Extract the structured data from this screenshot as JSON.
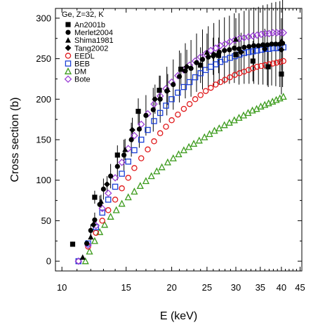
{
  "chart_data": {
    "type": "scatter",
    "title": "",
    "xlabel": "E (keV)",
    "ylabel": "Cross section   (b)",
    "x_scale": "log",
    "xlim": [
      9.6,
      45.5
    ],
    "ylim": [
      -12,
      312
    ],
    "x_ticks": [
      10,
      15,
      20,
      25,
      30,
      35,
      40,
      45
    ],
    "x_tick_labels": [
      "10",
      "15",
      "20",
      "25",
      "30",
      "35",
      "40",
      "45"
    ],
    "y_ticks": [
      0,
      50,
      100,
      150,
      200,
      250,
      300
    ],
    "y_tick_labels": [
      "0",
      "50",
      "100",
      "150",
      "200",
      "250",
      "300"
    ],
    "legend_title": "Ge, Z=32, K",
    "legend_position": "top-left",
    "grid": false,
    "series": [
      {
        "name": "An2001b",
        "marker": "square-filled",
        "color": "#000000",
        "points": [
          {
            "x": 10.7,
            "y": 21,
            "err": 3
          },
          {
            "x": 12.3,
            "y": 79,
            "err": 8
          },
          {
            "x": 14.2,
            "y": 131,
            "err": 12
          },
          {
            "x": 16.2,
            "y": 185,
            "err": 16
          },
          {
            "x": 18.5,
            "y": 211,
            "err": 18
          },
          {
            "x": 21.2,
            "y": 237,
            "err": 20
          },
          {
            "x": 24.0,
            "y": 242,
            "err": 22
          },
          {
            "x": 26.9,
            "y": 254,
            "err": 22
          },
          {
            "x": 30.0,
            "y": 255,
            "err": 24
          },
          {
            "x": 33.4,
            "y": 247,
            "err": 25
          },
          {
            "x": 36.8,
            "y": 240,
            "err": 25
          },
          {
            "x": 40.0,
            "y": 231,
            "err": 25
          }
        ]
      },
      {
        "name": "Merlet2004",
        "marker": "circle-filled",
        "color": "#000000",
        "points": [
          {
            "x": 11.7,
            "y": 22,
            "err": 4
          },
          {
            "x": 12.0,
            "y": 38,
            "err": 7
          },
          {
            "x": 12.3,
            "y": 51,
            "err": 9
          },
          {
            "x": 12.7,
            "y": 70,
            "err": 11
          },
          {
            "x": 13.0,
            "y": 89,
            "err": 13
          },
          {
            "x": 13.6,
            "y": 105,
            "err": 15
          },
          {
            "x": 14.2,
            "y": 117,
            "err": 17
          },
          {
            "x": 14.8,
            "y": 131,
            "err": 19
          },
          {
            "x": 15.5,
            "y": 150,
            "err": 21
          },
          {
            "x": 16.3,
            "y": 163,
            "err": 23
          },
          {
            "x": 17.0,
            "y": 180,
            "err": 25
          },
          {
            "x": 17.8,
            "y": 187,
            "err": 27
          },
          {
            "x": 18.6,
            "y": 200,
            "err": 29
          },
          {
            "x": 19.4,
            "y": 210,
            "err": 30
          },
          {
            "x": 20.2,
            "y": 218,
            "err": 31
          },
          {
            "x": 21.0,
            "y": 228,
            "err": 32
          },
          {
            "x": 21.8,
            "y": 235,
            "err": 34
          },
          {
            "x": 22.6,
            "y": 238,
            "err": 35
          },
          {
            "x": 23.4,
            "y": 245,
            "err": 36
          },
          {
            "x": 24.3,
            "y": 249,
            "err": 37
          },
          {
            "x": 25.2,
            "y": 252,
            "err": 38
          },
          {
            "x": 26.1,
            "y": 255,
            "err": 39
          },
          {
            "x": 27.0,
            "y": 258,
            "err": 40
          },
          {
            "x": 27.9,
            "y": 260,
            "err": 41
          },
          {
            "x": 28.8,
            "y": 261,
            "err": 42
          },
          {
            "x": 29.7,
            "y": 263,
            "err": 43
          },
          {
            "x": 30.6,
            "y": 262,
            "err": 44
          },
          {
            "x": 31.6,
            "y": 264,
            "err": 45
          },
          {
            "x": 32.6,
            "y": 265,
            "err": 46
          },
          {
            "x": 33.6,
            "y": 266,
            "err": 47
          },
          {
            "x": 34.6,
            "y": 266,
            "err": 48
          },
          {
            "x": 35.6,
            "y": 267,
            "err": 49
          },
          {
            "x": 36.6,
            "y": 267,
            "err": 50
          },
          {
            "x": 37.6,
            "y": 268,
            "err": 51
          },
          {
            "x": 38.6,
            "y": 268,
            "err": 52
          },
          {
            "x": 39.6,
            "y": 268,
            "err": 53
          },
          {
            "x": 40.3,
            "y": 269,
            "err": 54
          }
        ]
      },
      {
        "name": "Shima1981",
        "marker": "triangle-filled",
        "color": "#000000",
        "points": [
          {
            "x": 11.4,
            "y": 5,
            "err": 2
          },
          {
            "x": 12.0,
            "y": 30,
            "err": 4
          },
          {
            "x": 12.8,
            "y": 74,
            "err": 8
          },
          {
            "x": 14.9,
            "y": 138,
            "err": 13
          },
          {
            "x": 19.5,
            "y": 212,
            "err": 19
          },
          {
            "x": 25.0,
            "y": 258,
            "err": 23
          },
          {
            "x": 30.0,
            "y": 274,
            "err": 26
          },
          {
            "x": 40.0,
            "y": 272,
            "err": 28
          }
        ]
      },
      {
        "name": "Tang2002",
        "marker": "diamond-filled",
        "color": "#000000",
        "points": [
          {
            "x": 12.2,
            "y": 45,
            "err": 6
          },
          {
            "x": 13.3,
            "y": 95,
            "err": 10
          },
          {
            "x": 15.6,
            "y": 162,
            "err": 15
          },
          {
            "x": 18.0,
            "y": 200,
            "err": 18
          },
          {
            "x": 22.0,
            "y": 240,
            "err": 21
          },
          {
            "x": 26.0,
            "y": 253,
            "err": 23
          },
          {
            "x": 31.0,
            "y": 258,
            "err": 24
          },
          {
            "x": 36.0,
            "y": 262,
            "err": 25
          },
          {
            "x": 40.0,
            "y": 261,
            "err": 25
          }
        ]
      },
      {
        "name": "EEDL",
        "marker": "circle-open",
        "color": "#e0191b",
        "points": [
          {
            "x": 11.1,
            "y": 0
          },
          {
            "x": 11.8,
            "y": 18
          },
          {
            "x": 12.4,
            "y": 35
          },
          {
            "x": 12.9,
            "y": 50
          },
          {
            "x": 13.4,
            "y": 63
          },
          {
            "x": 14.0,
            "y": 76
          },
          {
            "x": 14.6,
            "y": 90
          },
          {
            "x": 15.2,
            "y": 103
          },
          {
            "x": 15.8,
            "y": 115
          },
          {
            "x": 16.5,
            "y": 127
          },
          {
            "x": 17.2,
            "y": 138
          },
          {
            "x": 17.9,
            "y": 148
          },
          {
            "x": 18.6,
            "y": 158
          },
          {
            "x": 19.3,
            "y": 166
          },
          {
            "x": 20.0,
            "y": 174
          },
          {
            "x": 20.8,
            "y": 181
          },
          {
            "x": 21.6,
            "y": 188
          },
          {
            "x": 22.4,
            "y": 194
          },
          {
            "x": 23.2,
            "y": 200
          },
          {
            "x": 24.0,
            "y": 205
          },
          {
            "x": 24.8,
            "y": 210
          },
          {
            "x": 25.6,
            "y": 214
          },
          {
            "x": 26.4,
            "y": 218
          },
          {
            "x": 27.2,
            "y": 221
          },
          {
            "x": 28.0,
            "y": 224
          },
          {
            "x": 28.9,
            "y": 227
          },
          {
            "x": 29.8,
            "y": 230
          },
          {
            "x": 30.7,
            "y": 232
          },
          {
            "x": 31.6,
            "y": 234
          },
          {
            "x": 32.5,
            "y": 236
          },
          {
            "x": 33.4,
            "y": 238
          },
          {
            "x": 34.3,
            "y": 240
          },
          {
            "x": 35.2,
            "y": 241
          },
          {
            "x": 36.1,
            "y": 242
          },
          {
            "x": 37.0,
            "y": 243
          },
          {
            "x": 37.9,
            "y": 244
          },
          {
            "x": 38.8,
            "y": 245
          },
          {
            "x": 39.7,
            "y": 246
          },
          {
            "x": 40.5,
            "y": 247
          }
        ]
      },
      {
        "name": "BEB",
        "marker": "square-open",
        "color": "#1a3fd6",
        "points": [
          {
            "x": 11.1,
            "y": 0
          },
          {
            "x": 11.8,
            "y": 22
          },
          {
            "x": 12.4,
            "y": 42
          },
          {
            "x": 12.9,
            "y": 60
          },
          {
            "x": 13.4,
            "y": 76
          },
          {
            "x": 14.0,
            "y": 92
          },
          {
            "x": 14.6,
            "y": 108
          },
          {
            "x": 15.2,
            "y": 123
          },
          {
            "x": 15.8,
            "y": 137
          },
          {
            "x": 16.5,
            "y": 150
          },
          {
            "x": 17.2,
            "y": 162
          },
          {
            "x": 17.9,
            "y": 173
          },
          {
            "x": 18.6,
            "y": 183
          },
          {
            "x": 19.3,
            "y": 192
          },
          {
            "x": 20.0,
            "y": 200
          },
          {
            "x": 20.8,
            "y": 208
          },
          {
            "x": 21.6,
            "y": 215
          },
          {
            "x": 22.4,
            "y": 221
          },
          {
            "x": 23.2,
            "y": 227
          },
          {
            "x": 24.0,
            "y": 232
          },
          {
            "x": 24.8,
            "y": 236
          },
          {
            "x": 25.6,
            "y": 240
          },
          {
            "x": 26.4,
            "y": 243
          },
          {
            "x": 27.2,
            "y": 246
          },
          {
            "x": 28.0,
            "y": 249
          },
          {
            "x": 28.9,
            "y": 251
          },
          {
            "x": 29.8,
            "y": 253
          },
          {
            "x": 30.7,
            "y": 255
          },
          {
            "x": 31.6,
            "y": 257
          },
          {
            "x": 32.5,
            "y": 258
          },
          {
            "x": 33.4,
            "y": 259
          },
          {
            "x": 34.3,
            "y": 260
          },
          {
            "x": 35.2,
            "y": 261
          },
          {
            "x": 36.1,
            "y": 262
          },
          {
            "x": 37.0,
            "y": 262
          },
          {
            "x": 37.9,
            "y": 263
          },
          {
            "x": 38.8,
            "y": 263
          },
          {
            "x": 39.7,
            "y": 264
          },
          {
            "x": 40.5,
            "y": 264
          }
        ]
      },
      {
        "name": "DM",
        "marker": "triangle-open",
        "color": "#3a9a1a",
        "points": [
          {
            "x": 11.6,
            "y": 0
          },
          {
            "x": 11.9,
            "y": 12
          },
          {
            "x": 12.3,
            "y": 25
          },
          {
            "x": 12.7,
            "y": 36
          },
          {
            "x": 13.1,
            "y": 45
          },
          {
            "x": 13.6,
            "y": 55
          },
          {
            "x": 14.1,
            "y": 63
          },
          {
            "x": 14.6,
            "y": 71
          },
          {
            "x": 15.2,
            "y": 79
          },
          {
            "x": 15.8,
            "y": 86
          },
          {
            "x": 16.4,
            "y": 93
          },
          {
            "x": 17.0,
            "y": 99
          },
          {
            "x": 17.6,
            "y": 105
          },
          {
            "x": 18.2,
            "y": 111
          },
          {
            "x": 18.8,
            "y": 116
          },
          {
            "x": 19.5,
            "y": 122
          },
          {
            "x": 20.2,
            "y": 127
          },
          {
            "x": 20.9,
            "y": 132
          },
          {
            "x": 21.6,
            "y": 137
          },
          {
            "x": 22.3,
            "y": 141
          },
          {
            "x": 23.0,
            "y": 145
          },
          {
            "x": 23.8,
            "y": 149
          },
          {
            "x": 24.6,
            "y": 153
          },
          {
            "x": 25.4,
            "y": 157
          },
          {
            "x": 26.2,
            "y": 161
          },
          {
            "x": 27.0,
            "y": 164
          },
          {
            "x": 27.9,
            "y": 168
          },
          {
            "x": 28.8,
            "y": 171
          },
          {
            "x": 29.7,
            "y": 174
          },
          {
            "x": 30.6,
            "y": 177
          },
          {
            "x": 31.5,
            "y": 180
          },
          {
            "x": 32.4,
            "y": 183
          },
          {
            "x": 33.3,
            "y": 186
          },
          {
            "x": 34.2,
            "y": 188
          },
          {
            "x": 35.1,
            "y": 191
          },
          {
            "x": 36.0,
            "y": 193
          },
          {
            "x": 36.9,
            "y": 195
          },
          {
            "x": 37.8,
            "y": 197
          },
          {
            "x": 38.7,
            "y": 199
          },
          {
            "x": 39.6,
            "y": 201
          },
          {
            "x": 40.5,
            "y": 203
          }
        ]
      },
      {
        "name": "Bote",
        "marker": "diamond-open",
        "color": "#9b3fd6",
        "points": [
          {
            "x": 11.1,
            "y": 0
          },
          {
            "x": 11.8,
            "y": 20
          },
          {
            "x": 12.4,
            "y": 44
          },
          {
            "x": 12.9,
            "y": 65
          },
          {
            "x": 13.4,
            "y": 84
          },
          {
            "x": 14.0,
            "y": 103
          },
          {
            "x": 14.6,
            "y": 122
          },
          {
            "x": 15.2,
            "y": 139
          },
          {
            "x": 15.8,
            "y": 155
          },
          {
            "x": 16.5,
            "y": 169
          },
          {
            "x": 17.2,
            "y": 182
          },
          {
            "x": 17.9,
            "y": 194
          },
          {
            "x": 18.6,
            "y": 204
          },
          {
            "x": 19.3,
            "y": 213
          },
          {
            "x": 20.0,
            "y": 221
          },
          {
            "x": 20.8,
            "y": 229
          },
          {
            "x": 21.6,
            "y": 236
          },
          {
            "x": 22.4,
            "y": 242
          },
          {
            "x": 23.2,
            "y": 247
          },
          {
            "x": 24.0,
            "y": 252
          },
          {
            "x": 24.8,
            "y": 256
          },
          {
            "x": 25.6,
            "y": 260
          },
          {
            "x": 26.4,
            "y": 263
          },
          {
            "x": 27.2,
            "y": 266
          },
          {
            "x": 28.0,
            "y": 268
          },
          {
            "x": 28.9,
            "y": 271
          },
          {
            "x": 29.8,
            "y": 273
          },
          {
            "x": 30.7,
            "y": 275
          },
          {
            "x": 31.6,
            "y": 276
          },
          {
            "x": 32.5,
            "y": 277
          },
          {
            "x": 33.4,
            "y": 278
          },
          {
            "x": 34.3,
            "y": 279
          },
          {
            "x": 35.2,
            "y": 280
          },
          {
            "x": 36.1,
            "y": 281
          },
          {
            "x": 37.0,
            "y": 281
          },
          {
            "x": 37.9,
            "y": 282
          },
          {
            "x": 38.8,
            "y": 282
          },
          {
            "x": 39.7,
            "y": 282
          },
          {
            "x": 40.5,
            "y": 282
          }
        ]
      }
    ]
  }
}
